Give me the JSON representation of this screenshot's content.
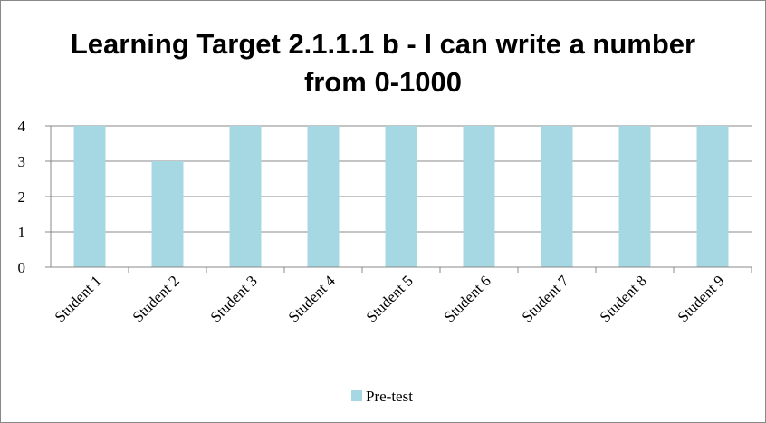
{
  "chart_data": {
    "type": "bar",
    "title": "Learning Target 2.1.1.1 b - I can write a number from 0-1000",
    "categories": [
      "Student 1",
      "Student 2",
      "Student 3",
      "Student 4",
      "Student 5",
      "Student 6",
      "Student 7",
      "Student 8",
      "Student 9"
    ],
    "series": [
      {
        "name": "Pre-test",
        "color": "#a6d8e3",
        "values": [
          4,
          3,
          4,
          4,
          4,
          4,
          4,
          4,
          4
        ]
      }
    ],
    "ylim": [
      0,
      4
    ],
    "yticks": [
      0,
      1,
      2,
      3,
      4
    ],
    "grid": true,
    "legend": "bottom"
  }
}
